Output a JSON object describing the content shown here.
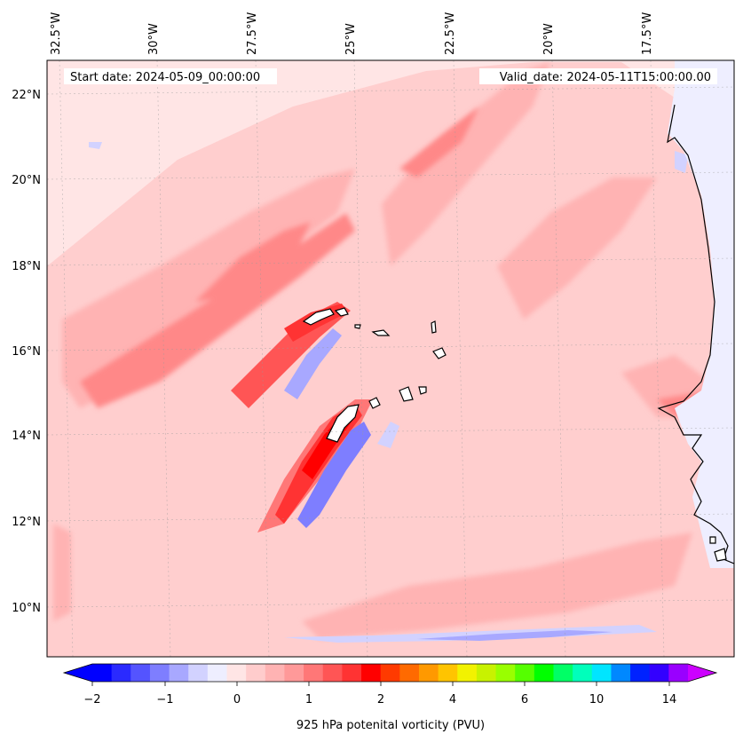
{
  "map": {
    "start_date": "Start date: 2024-05-09_00:00:00",
    "valid_date": "Valid_date: 2024-05-11T15:00:00.00",
    "lon_labels": [
      "32.5°W",
      "30°W",
      "27.5°W",
      "25°W",
      "22.5°W",
      "20°W",
      "17.5°W"
    ],
    "lat_labels": [
      "22°N",
      "20°N",
      "18°N",
      "16°N",
      "14°N",
      "12°N",
      "10°N"
    ],
    "extent": {
      "lon_min": -32.6,
      "lon_max": -15.0,
      "lat_min": 8.9,
      "lat_max": 22.8
    },
    "ocean_background": "#ffe5e5",
    "land_background": "#eeeeff"
  },
  "colorbar": {
    "label": "925 hPa potenital vorticity (PVU)",
    "tick_labels": [
      "−2",
      "−1",
      "0",
      "1",
      "2",
      "4",
      "6",
      "10",
      "14"
    ],
    "colors": [
      "#0000ff",
      "#2a2aff",
      "#5454ff",
      "#7e7eff",
      "#a8a8ff",
      "#d2d2ff",
      "#eeeeff",
      "#ffe5e5",
      "#ffcccc",
      "#ffb3b3",
      "#ff9999",
      "#ff7777",
      "#ff5555",
      "#ff3333",
      "#ff0000",
      "#ff3a00",
      "#ff6a00",
      "#ff9900",
      "#ffc400",
      "#f2f200",
      "#c8f200",
      "#99ff00",
      "#55ff00",
      "#00ff00",
      "#00ff66",
      "#00ffbb",
      "#00e5ff",
      "#0088ff",
      "#0022ff",
      "#3300ff",
      "#9900ff"
    ],
    "under_color": "#0000ff",
    "over_color": "#cc00ff"
  }
}
